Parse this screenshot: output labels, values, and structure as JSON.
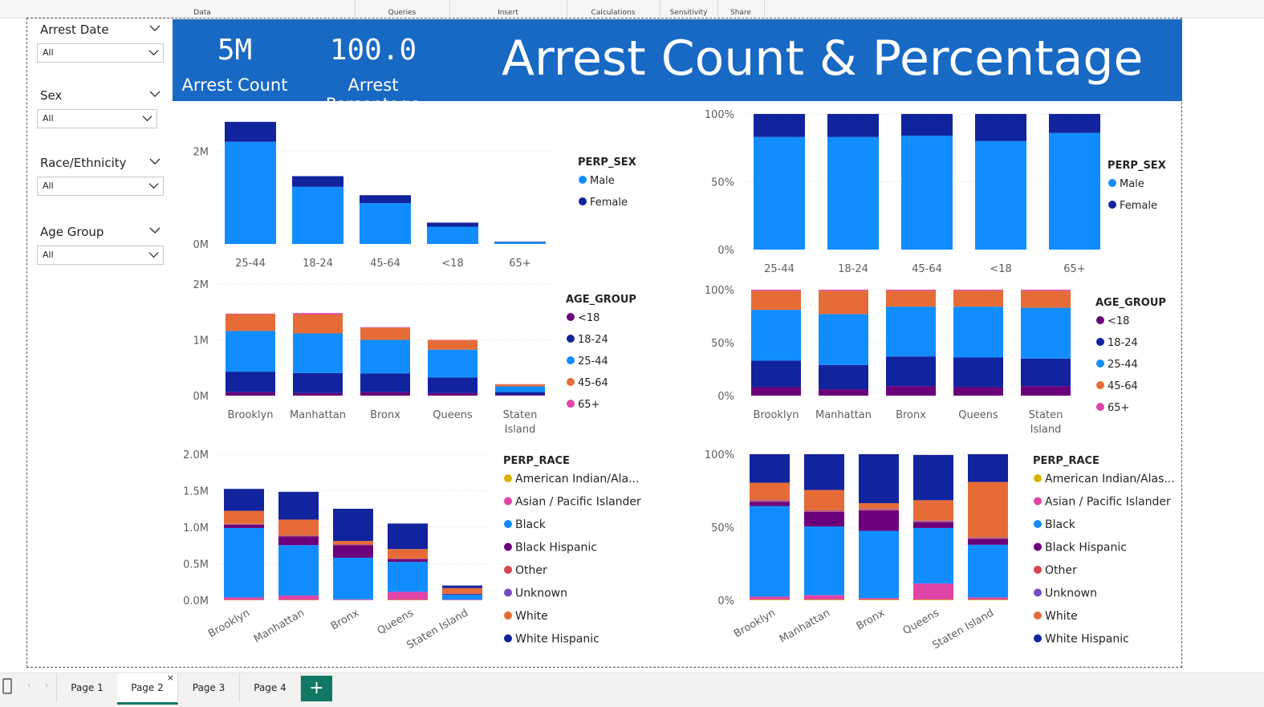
{
  "ribbon": {
    "groups": [
      {
        "label": "Data",
        "x": 62,
        "w": 380
      },
      {
        "label": "Queries",
        "x": 442,
        "w": 118
      },
      {
        "label": "Insert",
        "x": 560,
        "w": 146
      },
      {
        "label": "Calculations",
        "x": 706,
        "w": 116
      },
      {
        "label": "Sensitivity",
        "x": 822,
        "w": 72
      },
      {
        "label": "Share",
        "x": 894,
        "w": 58
      }
    ]
  },
  "slicers": [
    {
      "title": "Arrest Date",
      "value": "All"
    },
    {
      "title": "Sex",
      "value": "All"
    },
    {
      "title": "Race/Ethnicity",
      "value": "All"
    },
    {
      "title": "Age Group",
      "value": "All"
    }
  ],
  "banner": {
    "kpi1_value": "5M",
    "kpi1_label": "Arrest Count",
    "kpi2_value": "100.0",
    "kpi2_label": "Arrest Percentage",
    "title": "Arrest Count & Percentage"
  },
  "colors": {
    "male": "#118dff",
    "female": "#12239e",
    "lt18": "#6b007b",
    "a18_24": "#12239e",
    "a25_44": "#118dff",
    "a45_64": "#e66c37",
    "a65": "#e044a7",
    "amind": "#d9b300",
    "asian": "#e044a7",
    "black": "#118dff",
    "blackhisp": "#6b007b",
    "other": "#d64550",
    "unknown": "#744ec2",
    "white": "#e66c37",
    "whitehisp": "#12239e"
  },
  "tabs": [
    "Page 1",
    "Page 2",
    "Page 3",
    "Page 4"
  ],
  "active_tab": "Page 2",
  "chart_data": [
    {
      "id": "sex_by_age_count",
      "type": "bar",
      "stacked": true,
      "categories": [
        "25-44",
        "18-24",
        "45-64",
        "<18",
        "65+"
      ],
      "legend_title": "PERP_SEX",
      "series": [
        {
          "name": "Male",
          "values": [
            2200000,
            1230000,
            880000,
            370000,
            40000
          ],
          "color": "#118dff"
        },
        {
          "name": "Female",
          "values": [
            430000,
            230000,
            170000,
            90000,
            10000
          ],
          "color": "#12239e"
        }
      ],
      "yticks": [
        {
          "v": 0,
          "label": "0M"
        },
        {
          "v": 2000000,
          "label": "2M"
        }
      ],
      "ylim": [
        0,
        2800000
      ]
    },
    {
      "id": "sex_by_age_pct",
      "type": "bar",
      "stacked": true,
      "percent": true,
      "categories": [
        "25-44",
        "18-24",
        "45-64",
        "<18",
        "65+"
      ],
      "legend_title": "PERP_SEX",
      "series": [
        {
          "name": "Male",
          "values": [
            83,
            83,
            84,
            80,
            86
          ],
          "color": "#118dff"
        },
        {
          "name": "Female",
          "values": [
            17,
            17,
            16,
            20,
            14
          ],
          "color": "#12239e"
        }
      ],
      "yticks": [
        {
          "v": 0,
          "label": "0%"
        },
        {
          "v": 50,
          "label": "50%"
        },
        {
          "v": 100,
          "label": "100%"
        }
      ],
      "ylim": [
        0,
        100
      ]
    },
    {
      "id": "age_by_boro_count",
      "type": "bar",
      "stacked": true,
      "categories": [
        "Brooklyn",
        "Manhattan",
        "Bronx",
        "Queens",
        "Staten Island"
      ],
      "legend_title": "AGE_GROUP",
      "series": [
        {
          "name": "<18",
          "values": [
            60000,
            45000,
            60000,
            45000,
            12000
          ],
          "color": "#6b007b"
        },
        {
          "name": "18-24",
          "values": [
            370000,
            360000,
            340000,
            280000,
            55000
          ],
          "color": "#12239e"
        },
        {
          "name": "25-44",
          "values": [
            730000,
            710000,
            600000,
            500000,
            100000
          ],
          "color": "#118dff"
        },
        {
          "name": "45-64",
          "values": [
            300000,
            340000,
            220000,
            170000,
            35000
          ],
          "color": "#e66c37"
        },
        {
          "name": "65+",
          "values": [
            10000,
            25000,
            8000,
            6000,
            3000
          ],
          "color": "#e044a7"
        }
      ],
      "yticks": [
        {
          "v": 0,
          "label": "0M"
        },
        {
          "v": 1000000,
          "label": "1M"
        },
        {
          "v": 2000000,
          "label": "2M"
        }
      ],
      "ylim": [
        0,
        2000000
      ]
    },
    {
      "id": "age_by_boro_pct",
      "type": "bar",
      "stacked": true,
      "percent": true,
      "categories": [
        "Brooklyn",
        "Manhattan",
        "Bronx",
        "Queens",
        "Staten Island"
      ],
      "legend_title": "AGE_GROUP",
      "series": [
        {
          "name": "<18",
          "values": [
            8,
            6,
            9,
            8,
            9
          ],
          "color": "#6b007b"
        },
        {
          "name": "18-24",
          "values": [
            25,
            23,
            28,
            28,
            26
          ],
          "color": "#12239e"
        },
        {
          "name": "25-44",
          "values": [
            48,
            48,
            47,
            48,
            48
          ],
          "color": "#118dff"
        },
        {
          "name": "45-64",
          "values": [
            18,
            22,
            15,
            15,
            16
          ],
          "color": "#e66c37"
        },
        {
          "name": "65+",
          "values": [
            1,
            1,
            1,
            1,
            1
          ],
          "color": "#e044a7"
        }
      ],
      "yticks": [
        {
          "v": 0,
          "label": "0%"
        },
        {
          "v": 50,
          "label": "50%"
        },
        {
          "v": 100,
          "label": "100%"
        }
      ],
      "ylim": [
        0,
        100
      ]
    },
    {
      "id": "race_by_boro_count",
      "type": "bar",
      "stacked": true,
      "categories": [
        "Brooklyn",
        "Manhattan",
        "Bronx",
        "Queens",
        "Staten Island"
      ],
      "legend_title": "PERP_RACE",
      "series": [
        {
          "name": "American Indian/Ala...",
          "values": [
            5000,
            5000,
            3000,
            6000,
            1000
          ],
          "color": "#d9b300"
        },
        {
          "name": "Asian / Pacific Islander",
          "values": [
            35000,
            60000,
            10000,
            110000,
            8000
          ],
          "color": "#e044a7"
        },
        {
          "name": "Black",
          "values": [
            950000,
            690000,
            570000,
            410000,
            70000
          ],
          "color": "#118dff"
        },
        {
          "name": "Black Hispanic",
          "values": [
            45000,
            120000,
            170000,
            35000,
            10000
          ],
          "color": "#6b007b"
        },
        {
          "name": "Other",
          "values": [
            5000,
            5000,
            5000,
            5000,
            2000
          ],
          "color": "#d64550"
        },
        {
          "name": "Unknown",
          "values": [
            5000,
            5000,
            5000,
            5000,
            1000
          ],
          "color": "#744ec2"
        },
        {
          "name": "White",
          "values": [
            180000,
            220000,
            50000,
            130000,
            75000
          ],
          "color": "#e66c37"
        },
        {
          "name": "White Hispanic",
          "values": [
            300000,
            380000,
            440000,
            350000,
            35000
          ],
          "color": "#12239e"
        }
      ],
      "yticks": [
        {
          "v": 0,
          "label": "0.0M"
        },
        {
          "v": 500000,
          "label": "0.5M"
        },
        {
          "v": 1000000,
          "label": "1.0M"
        },
        {
          "v": 1500000,
          "label": "1.5M"
        },
        {
          "v": 2000000,
          "label": "2.0M"
        }
      ],
      "ylim": [
        0,
        2000000
      ]
    },
    {
      "id": "race_by_boro_pct",
      "type": "bar",
      "stacked": true,
      "percent": true,
      "categories": [
        "Brooklyn",
        "Manhattan",
        "Bronx",
        "Queens",
        "Staten Island"
      ],
      "legend_title": "PERP_RACE",
      "series": [
        {
          "name": "American Indian/Alas...",
          "values": [
            0.5,
            0.5,
            0.5,
            0.5,
            0.5
          ],
          "color": "#d9b300"
        },
        {
          "name": "Asian / Pacific Islander",
          "values": [
            2,
            3,
            1,
            11,
            1.5
          ],
          "color": "#e044a7"
        },
        {
          "name": "Black",
          "values": [
            62,
            47,
            46,
            38,
            36
          ],
          "color": "#118dff"
        },
        {
          "name": "Black Hispanic",
          "values": [
            3,
            10,
            14,
            4,
            4
          ],
          "color": "#6b007b"
        },
        {
          "name": "Other",
          "values": [
            0.5,
            0.5,
            0.5,
            0.5,
            0.5
          ],
          "color": "#d64550"
        },
        {
          "name": "Unknown",
          "values": [
            0.5,
            0.5,
            0.5,
            0.5,
            0.5
          ],
          "color": "#744ec2"
        },
        {
          "name": "White",
          "values": [
            12,
            14,
            4,
            14,
            38
          ],
          "color": "#e66c37"
        },
        {
          "name": "White Hispanic",
          "values": [
            19.5,
            24.5,
            33.5,
            31,
            19
          ],
          "color": "#12239e"
        }
      ],
      "yticks": [
        {
          "v": 0,
          "label": "0%"
        },
        {
          "v": 50,
          "label": "50%"
        },
        {
          "v": 100,
          "label": "100%"
        }
      ],
      "ylim": [
        0,
        100
      ]
    }
  ]
}
